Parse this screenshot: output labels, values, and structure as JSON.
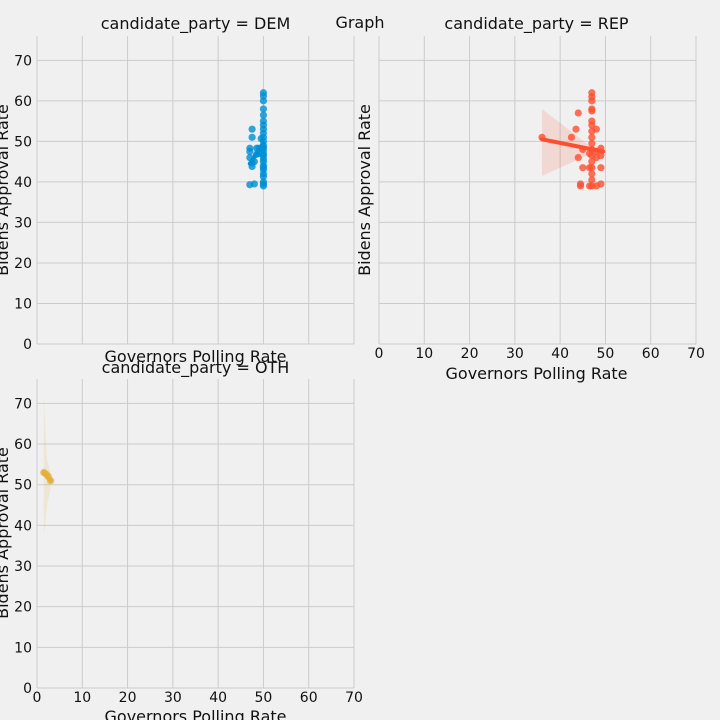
{
  "chart_data": {
    "type": "scatter",
    "suptitle": "Graph",
    "xlabel": "Governors Polling Rate",
    "ylabel": "Bidens Approval Rate",
    "xlim": [
      0,
      70
    ],
    "ylim": [
      0,
      76
    ],
    "x_ticks": [
      0,
      10,
      20,
      30,
      40,
      50,
      60,
      70
    ],
    "y_ticks": [
      0,
      10,
      20,
      30,
      40,
      50,
      60,
      70
    ],
    "grid": true,
    "panels": [
      {
        "title": "candidate_party = DEM",
        "color": "#008fd5",
        "points": [
          [
            47,
            39.3
          ],
          [
            47,
            46
          ],
          [
            47,
            47.5
          ],
          [
            47,
            48.3
          ],
          [
            47.5,
            43.8
          ],
          [
            47.5,
            44.7
          ],
          [
            47.5,
            53
          ],
          [
            47.5,
            51
          ],
          [
            48,
            39.5
          ],
          [
            48,
            45
          ],
          [
            48.5,
            48.3
          ],
          [
            48.5,
            46.8
          ],
          [
            49,
            47
          ],
          [
            49,
            48.3
          ],
          [
            49.5,
            50.7
          ],
          [
            49.5,
            48.3
          ],
          [
            50,
            39
          ],
          [
            50,
            39.5
          ],
          [
            50,
            40
          ],
          [
            50,
            41.3
          ],
          [
            50,
            42
          ],
          [
            50,
            43
          ],
          [
            50,
            43.5
          ],
          [
            50,
            44
          ],
          [
            50,
            45
          ],
          [
            50,
            45.7
          ],
          [
            50,
            46.5
          ],
          [
            50,
            47
          ],
          [
            50,
            47.8
          ],
          [
            50,
            48.5
          ],
          [
            50,
            49
          ],
          [
            50,
            50
          ],
          [
            50,
            51
          ],
          [
            50,
            52
          ],
          [
            50,
            53
          ],
          [
            50,
            54
          ],
          [
            50,
            55
          ],
          [
            50,
            56.5
          ],
          [
            50,
            58
          ],
          [
            50,
            60
          ],
          [
            50,
            61.2
          ],
          [
            50,
            62
          ]
        ],
        "fit": {
          "x": [
            47,
            50
          ],
          "y": [
            44.5,
            49.5
          ]
        },
        "band": {
          "x": [
            47,
            50
          ],
          "lower": [
            43,
            48.5
          ],
          "upper": [
            46,
            50.5
          ]
        },
        "show_x_ticks": false,
        "show_y_ticks": true
      },
      {
        "title": "candidate_party = REP",
        "color": "#fc4f30",
        "points": [
          [
            36,
            51
          ],
          [
            42.5,
            51
          ],
          [
            43.5,
            53
          ],
          [
            44,
            57
          ],
          [
            44,
            46
          ],
          [
            44.5,
            39.5
          ],
          [
            44.5,
            39
          ],
          [
            45,
            48
          ],
          [
            45,
            43.5
          ],
          [
            46.5,
            47
          ],
          [
            46.5,
            43.5
          ],
          [
            46.5,
            39
          ],
          [
            47,
            39
          ],
          [
            47,
            40.5
          ],
          [
            47,
            42
          ],
          [
            47,
            43.5
          ],
          [
            47,
            45
          ],
          [
            47,
            46.5
          ],
          [
            47,
            48
          ],
          [
            47,
            49.5
          ],
          [
            47,
            51
          ],
          [
            47,
            52.5
          ],
          [
            47,
            54
          ],
          [
            47,
            55
          ],
          [
            47,
            57.5
          ],
          [
            47,
            58
          ],
          [
            47,
            60
          ],
          [
            47,
            61
          ],
          [
            47,
            62
          ],
          [
            48,
            53
          ],
          [
            48,
            47.5
          ],
          [
            48,
            46
          ],
          [
            48,
            39
          ],
          [
            49,
            48.3
          ],
          [
            49,
            43.5
          ],
          [
            49,
            46.5
          ],
          [
            49,
            39.5
          ]
        ],
        "fit": {
          "x": [
            36,
            49.5
          ],
          "y": [
            50.5,
            47.5
          ]
        },
        "band": {
          "x": [
            36,
            47,
            49.5
          ],
          "lower": [
            41.5,
            47,
            46
          ],
          "upper": [
            58,
            48.5,
            49
          ]
        },
        "show_x_ticks": true,
        "show_y_ticks": false
      },
      {
        "title": "candidate_party = OTH",
        "color": "#e5ae38",
        "points": [
          [
            1.5,
            53
          ],
          [
            2,
            52.6
          ],
          [
            2.5,
            52
          ],
          [
            3,
            51
          ]
        ],
        "fit": {
          "x": [
            1.5,
            3
          ],
          "y": [
            53,
            51
          ]
        },
        "band": {
          "x": [
            1.5,
            2.2,
            3
          ],
          "lower": [
            37,
            45,
            49
          ],
          "upper": [
            72,
            56,
            53
          ]
        },
        "show_x_ticks": true,
        "show_y_ticks": true
      }
    ]
  }
}
